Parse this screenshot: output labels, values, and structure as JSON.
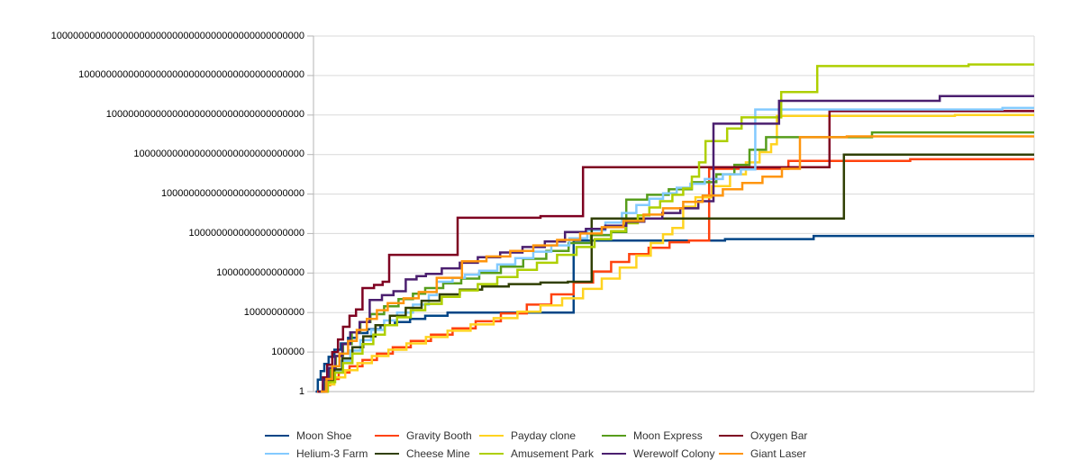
{
  "chart_data": {
    "type": "line",
    "subtype": "step-after",
    "title": "",
    "legend_position": "bottom-center",
    "gridlines": "horizontal",
    "x_axis": {
      "tick_labels_visible": false
    },
    "y_axis": {
      "scale": "log",
      "ylim": [
        1,
        1e+45
      ],
      "tick_log10": [
        0,
        5,
        10,
        15,
        20,
        25,
        30,
        35,
        40,
        45
      ],
      "tick_labels": [
        "1",
        "100000",
        "10000000000",
        "1000000000000000",
        "100000000000000000000",
        "10000000000000000000000000",
        "1000000000000000000000000000000",
        "100000000000000000000000000000000000",
        "10000000000000000000000000000000000000000",
        "1000000000000000000000000000000000000000000000"
      ]
    },
    "style": {
      "background": "#ffffff",
      "grid_color": "#d9d9d9",
      "axis_color": "#b5b5b5",
      "text_color": "#000000",
      "legend_text_color": "#333333"
    },
    "points_format": "[x_fraction_of_plot_width, log10_of_value]",
    "series": [
      {
        "name": "Moon Shoe",
        "slug": "moon-shoe",
        "color": "#004586",
        "points": [
          [
            0.003,
            0
          ],
          [
            0.006,
            1.5
          ],
          [
            0.01,
            2.6
          ],
          [
            0.015,
            3.5
          ],
          [
            0.021,
            4.4
          ],
          [
            0.029,
            5.3
          ],
          [
            0.038,
            6.1
          ],
          [
            0.048,
            6.8
          ],
          [
            0.06,
            7.4
          ],
          [
            0.075,
            7.9
          ],
          [
            0.093,
            8.4
          ],
          [
            0.113,
            8.8
          ],
          [
            0.134,
            9.2
          ],
          [
            0.155,
            9.6
          ],
          [
            0.186,
            10
          ],
          [
            0.361,
            19.1
          ],
          [
            0.571,
            19.3
          ],
          [
            0.694,
            19.7
          ],
          [
            1,
            19.7
          ]
        ]
      },
      {
        "name": "Gravity Booth",
        "slug": "gravity-booth",
        "color": "#FF420E",
        "points": [
          [
            0.005,
            0
          ],
          [
            0.013,
            0.8
          ],
          [
            0.023,
            1.6
          ],
          [
            0.035,
            2.4
          ],
          [
            0.05,
            3.2
          ],
          [
            0.068,
            4.0
          ],
          [
            0.088,
            4.8
          ],
          [
            0.11,
            5.6
          ],
          [
            0.135,
            6.4
          ],
          [
            0.163,
            7.2
          ],
          [
            0.193,
            8.0
          ],
          [
            0.225,
            8.9
          ],
          [
            0.26,
            9.9
          ],
          [
            0.296,
            11.0
          ],
          [
            0.33,
            12.3
          ],
          [
            0.361,
            13.8
          ],
          [
            0.388,
            15.2
          ],
          [
            0.413,
            16.4
          ],
          [
            0.438,
            17.4
          ],
          [
            0.465,
            18.2
          ],
          [
            0.494,
            18.9
          ],
          [
            0.521,
            19.1
          ],
          [
            0.549,
            28.2
          ],
          [
            0.659,
            29.2
          ],
          [
            0.828,
            29.4
          ],
          [
            1,
            29.4
          ]
        ]
      },
      {
        "name": "Payday clone",
        "slug": "payday-clone",
        "color": "#FFD320",
        "points": [
          [
            0.006,
            0
          ],
          [
            0.016,
            0.9
          ],
          [
            0.029,
            1.8
          ],
          [
            0.044,
            2.7
          ],
          [
            0.061,
            3.6
          ],
          [
            0.081,
            4.5
          ],
          [
            0.104,
            5.3
          ],
          [
            0.129,
            6.1
          ],
          [
            0.156,
            6.9
          ],
          [
            0.186,
            7.7
          ],
          [
            0.218,
            8.5
          ],
          [
            0.25,
            9.3
          ],
          [
            0.283,
            10.1
          ],
          [
            0.315,
            10.9
          ],
          [
            0.345,
            11.8
          ],
          [
            0.374,
            13.0
          ],
          [
            0.4,
            14.3
          ],
          [
            0.425,
            15.7
          ],
          [
            0.448,
            17.2
          ],
          [
            0.468,
            18.8
          ],
          [
            0.485,
            19.9
          ],
          [
            0.498,
            20.7
          ],
          [
            0.513,
            23.4
          ],
          [
            0.53,
            24.6
          ],
          [
            0.553,
            26.0
          ],
          [
            0.578,
            27.5
          ],
          [
            0.6,
            29.0
          ],
          [
            0.619,
            30.3
          ],
          [
            0.635,
            31.3
          ],
          [
            0.643,
            34.9
          ],
          [
            0.89,
            35.0
          ],
          [
            1,
            35.0
          ]
        ]
      },
      {
        "name": "Moon Express",
        "slug": "moon-express",
        "color": "#579D1C",
        "points": [
          [
            0.008,
            0
          ],
          [
            0.015,
            1.5
          ],
          [
            0.023,
            3.0
          ],
          [
            0.031,
            4.5
          ],
          [
            0.041,
            6.0
          ],
          [
            0.053,
            7.5
          ],
          [
            0.065,
            8.8
          ],
          [
            0.079,
            9.8
          ],
          [
            0.098,
            10.8
          ],
          [
            0.118,
            11.7
          ],
          [
            0.138,
            12.4
          ],
          [
            0.155,
            13.1
          ],
          [
            0.18,
            13.7
          ],
          [
            0.205,
            14.3
          ],
          [
            0.23,
            15.0
          ],
          [
            0.26,
            15.8
          ],
          [
            0.291,
            16.8
          ],
          [
            0.323,
            17.8
          ],
          [
            0.354,
            18.8
          ],
          [
            0.385,
            19.8
          ],
          [
            0.413,
            20.2
          ],
          [
            0.434,
            24.3
          ],
          [
            0.463,
            24.9
          ],
          [
            0.493,
            25.6
          ],
          [
            0.525,
            26.5
          ],
          [
            0.559,
            27.5
          ],
          [
            0.584,
            28.7
          ],
          [
            0.605,
            30.6
          ],
          [
            0.628,
            32.2
          ],
          [
            0.775,
            32.8
          ],
          [
            1,
            32.8
          ]
        ]
      },
      {
        "name": "Oxygen Bar",
        "slug": "oxygen-bar",
        "color": "#7E0021",
        "points": [
          [
            0.006,
            0
          ],
          [
            0.013,
            1.8
          ],
          [
            0.019,
            3.4
          ],
          [
            0.026,
            5.0
          ],
          [
            0.034,
            6.6
          ],
          [
            0.041,
            8.2
          ],
          [
            0.05,
            9.6
          ],
          [
            0.059,
            10.4
          ],
          [
            0.068,
            13.1
          ],
          [
            0.084,
            13.5
          ],
          [
            0.096,
            13.9
          ],
          [
            0.105,
            17.3
          ],
          [
            0.2,
            22.0
          ],
          [
            0.315,
            22.2
          ],
          [
            0.374,
            28.4
          ],
          [
            0.716,
            35.5
          ],
          [
            1,
            35.5
          ]
        ]
      },
      {
        "name": "Helium-3 Farm",
        "slug": "helium-3-farm",
        "color": "#83CAFF",
        "points": [
          [
            0.009,
            0
          ],
          [
            0.018,
            1.3
          ],
          [
            0.028,
            2.6
          ],
          [
            0.039,
            3.9
          ],
          [
            0.051,
            5.2
          ],
          [
            0.065,
            6.5
          ],
          [
            0.08,
            7.8
          ],
          [
            0.098,
            9.0
          ],
          [
            0.116,
            10.0
          ],
          [
            0.138,
            11.0
          ],
          [
            0.16,
            12.2
          ],
          [
            0.171,
            13.9
          ],
          [
            0.193,
            14.4
          ],
          [
            0.21,
            14.8
          ],
          [
            0.23,
            15.3
          ],
          [
            0.255,
            16.1
          ],
          [
            0.28,
            16.9
          ],
          [
            0.305,
            17.7
          ],
          [
            0.33,
            18.5
          ],
          [
            0.355,
            19.4
          ],
          [
            0.38,
            20.4
          ],
          [
            0.405,
            21.4
          ],
          [
            0.428,
            22.6
          ],
          [
            0.448,
            23.6
          ],
          [
            0.466,
            24.4
          ],
          [
            0.485,
            25.1
          ],
          [
            0.504,
            25.8
          ],
          [
            0.523,
            26.3
          ],
          [
            0.543,
            26.9
          ],
          [
            0.568,
            27.5
          ],
          [
            0.593,
            28.1
          ],
          [
            0.613,
            35.7
          ],
          [
            0.956,
            35.9
          ],
          [
            1,
            35.9
          ]
        ]
      },
      {
        "name": "Cheese Mine",
        "slug": "cheese-mine",
        "color": "#314004",
        "points": [
          [
            0.01,
            0
          ],
          [
            0.019,
            1.4
          ],
          [
            0.029,
            2.8
          ],
          [
            0.04,
            4.2
          ],
          [
            0.054,
            5.6
          ],
          [
            0.069,
            7.0
          ],
          [
            0.086,
            8.4
          ],
          [
            0.106,
            9.6
          ],
          [
            0.128,
            10.6
          ],
          [
            0.15,
            11.5
          ],
          [
            0.175,
            12.3
          ],
          [
            0.203,
            12.9
          ],
          [
            0.234,
            13.3
          ],
          [
            0.271,
            13.6
          ],
          [
            0.315,
            13.8
          ],
          [
            0.353,
            13.9
          ],
          [
            0.386,
            21.9
          ],
          [
            0.736,
            30.0
          ],
          [
            1,
            30.0
          ]
        ]
      },
      {
        "name": "Amusement Park",
        "slug": "amusement-park",
        "color": "#AECF00",
        "points": [
          [
            0.011,
            0
          ],
          [
            0.02,
            1.2
          ],
          [
            0.03,
            2.4
          ],
          [
            0.041,
            3.6
          ],
          [
            0.054,
            4.8
          ],
          [
            0.068,
            6.0
          ],
          [
            0.083,
            7.2
          ],
          [
            0.099,
            8.4
          ],
          [
            0.116,
            9.4
          ],
          [
            0.135,
            10.3
          ],
          [
            0.155,
            11.1
          ],
          [
            0.178,
            12.0
          ],
          [
            0.203,
            12.8
          ],
          [
            0.228,
            13.6
          ],
          [
            0.255,
            14.5
          ],
          [
            0.283,
            15.4
          ],
          [
            0.31,
            16.3
          ],
          [
            0.338,
            17.3
          ],
          [
            0.365,
            18.3
          ],
          [
            0.39,
            19.3
          ],
          [
            0.413,
            20.3
          ],
          [
            0.433,
            21.3
          ],
          [
            0.45,
            22.3
          ],
          [
            0.466,
            23.3
          ],
          [
            0.481,
            24.1
          ],
          [
            0.498,
            24.9
          ],
          [
            0.513,
            25.7
          ],
          [
            0.525,
            27.2
          ],
          [
            0.535,
            29.0
          ],
          [
            0.544,
            31.7
          ],
          [
            0.574,
            33.3
          ],
          [
            0.594,
            34.7
          ],
          [
            0.649,
            37.9
          ],
          [
            0.699,
            41.2
          ],
          [
            0.909,
            41.4
          ],
          [
            1,
            41.4
          ]
        ]
      },
      {
        "name": "Werewolf Colony",
        "slug": "werewolf-colony",
        "color": "#4B1F6F",
        "points": [
          [
            0.008,
            0
          ],
          [
            0.014,
            1.5
          ],
          [
            0.021,
            3.0
          ],
          [
            0.03,
            4.5
          ],
          [
            0.04,
            6.0
          ],
          [
            0.051,
            7.5
          ],
          [
            0.064,
            8.8
          ],
          [
            0.078,
            11.6
          ],
          [
            0.095,
            12.2
          ],
          [
            0.111,
            12.7
          ],
          [
            0.128,
            14.2
          ],
          [
            0.143,
            14.6
          ],
          [
            0.156,
            14.9
          ],
          [
            0.178,
            15.6
          ],
          [
            0.203,
            16.3
          ],
          [
            0.228,
            17.0
          ],
          [
            0.259,
            17.6
          ],
          [
            0.29,
            18.3
          ],
          [
            0.321,
            19.0
          ],
          [
            0.349,
            20.2
          ],
          [
            0.378,
            20.6
          ],
          [
            0.405,
            21.0
          ],
          [
            0.434,
            21.5
          ],
          [
            0.459,
            21.9
          ],
          [
            0.484,
            22.6
          ],
          [
            0.509,
            23.2
          ],
          [
            0.534,
            24.1
          ],
          [
            0.555,
            33.9
          ],
          [
            0.646,
            36.8
          ],
          [
            0.869,
            37.4
          ],
          [
            1,
            37.4
          ]
        ]
      },
      {
        "name": "Giant Laser",
        "slug": "giant-laser",
        "color": "#FF950E",
        "points": [
          [
            0.01,
            0
          ],
          [
            0.018,
            1.6
          ],
          [
            0.026,
            3.2
          ],
          [
            0.036,
            4.8
          ],
          [
            0.048,
            6.4
          ],
          [
            0.06,
            7.8
          ],
          [
            0.074,
            9.2
          ],
          [
            0.088,
            10.3
          ],
          [
            0.103,
            11.2
          ],
          [
            0.125,
            11.8
          ],
          [
            0.146,
            12.6
          ],
          [
            0.171,
            14.4
          ],
          [
            0.206,
            16.5
          ],
          [
            0.24,
            17.1
          ],
          [
            0.273,
            17.8
          ],
          [
            0.305,
            18.5
          ],
          [
            0.338,
            19.2
          ],
          [
            0.37,
            20.0
          ],
          [
            0.4,
            20.8
          ],
          [
            0.43,
            21.6
          ],
          [
            0.458,
            22.4
          ],
          [
            0.485,
            23.2
          ],
          [
            0.513,
            24.0
          ],
          [
            0.54,
            24.8
          ],
          [
            0.568,
            25.6
          ],
          [
            0.595,
            26.4
          ],
          [
            0.623,
            27.2
          ],
          [
            0.65,
            28.2
          ],
          [
            0.675,
            32.2
          ],
          [
            0.74,
            32.3
          ],
          [
            1,
            32.3
          ]
        ]
      }
    ]
  }
}
